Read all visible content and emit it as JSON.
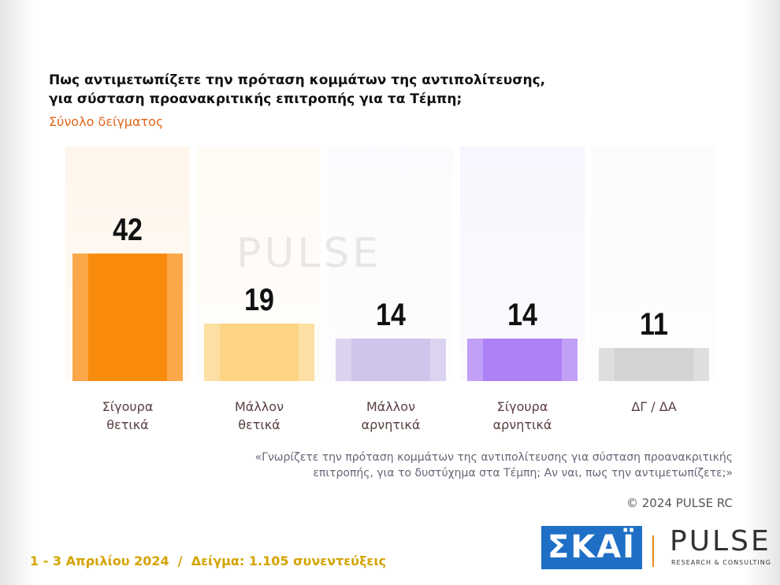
{
  "chart_data": {
    "type": "bar",
    "title": [
      "Πως αντιμετωπίζετε την πρόταση κομμάτων της αντιπολίτευσης,",
      "για σύσταση προανακριτικής επιτροπής για τα Τέμπη;"
    ],
    "subtitle": "Σύνολο δείγματος",
    "categories": [
      "Σίγουρα θετικά",
      "Μάλλον θετικά",
      "Μάλλον αρνητικά",
      "Σίγουρα αρνητικά",
      "ΔΓ / ΔΑ"
    ],
    "values": [
      42,
      19,
      14,
      14,
      11
    ],
    "colors": [
      "#f98b0d",
      "#fdd484",
      "#cfc5ea",
      "#ad80f5",
      "#d3d3d3"
    ],
    "note": [
      "«Γνωρίζετε την πρόταση κομμάτων της αντιπολίτευσης για σύσταση προανακριτικής",
      "επιτροπής, για το δυστύχημα στα Τέμπη; Αν ναι, πως την αντιμετωπίζετε;»"
    ],
    "copyright": "© 2024 PULSE RC",
    "footer": "1 - 3 Απριλίου 2024  /  Δείγμα: 1.105 συνεντεύξεις"
  },
  "logos": {
    "skai": "ΣΚΑΪ",
    "pulse": "PULSE",
    "pulse_tagline": "RESEARCH & CONSULTING"
  }
}
